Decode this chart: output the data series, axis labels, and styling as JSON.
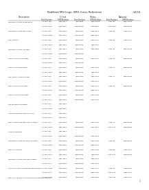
{
  "title": "RadHard MSI Logic SMD Cross Reference",
  "page": "V2/24",
  "bg_color": "#ffffff",
  "rows": [
    [
      "Quadruple 2-Input NAND Gates",
      "F 27xxx 388",
      "5962-8611",
      "IDT100885",
      "5962-8751x",
      "5461 88",
      "5962-8751x"
    ],
    [
      "",
      "F 27xxx 3984",
      "5962-8611",
      "IDT1000088",
      "5962-8827",
      "5461 1984",
      "5962-8751x"
    ],
    [
      "Quadruple 2-Input NOR Gates",
      "F 27xxx 382",
      "5962-8614",
      "IDT100085",
      "5962-4873",
      "5461 82",
      "5962-4742"
    ],
    [
      "",
      "F 27xxx 3942",
      "5962-8614",
      "IDT1000088",
      "5962-8843",
      "",
      ""
    ],
    [
      "Bus Inverters",
      "F 27xxx 384",
      "5962-8618",
      "IDT100085",
      "5962-8717",
      "5461 84",
      "5962-8748"
    ],
    [
      "",
      "F 27xxx 3964",
      "5962-8617",
      "IDT1000088",
      "5962-7717",
      "",
      ""
    ],
    [
      "Quadruple 2-Input OR Gates",
      "F 27xxx 348",
      "5962-8618",
      "IDT100085",
      "5962-4888",
      "5461 38",
      "5962-8751x"
    ],
    [
      "",
      "F 27xxx 3528",
      "5962-8618",
      "IDT1000088",
      "",
      "",
      ""
    ],
    [
      "Triple 4-Input NAND Gates",
      "F 27xxx 318",
      "5962-8618",
      "IDT100085",
      "5962-8717",
      "5461 18",
      "5962-8751x"
    ],
    [
      "",
      "F 27xxx 3194",
      "5962-8611",
      "IDT1000088",
      "",
      "",
      ""
    ],
    [
      "Triple 4-Input NOR Gates",
      "F 27xxx 31 1",
      "5962-8622",
      "IDT100085",
      "5962-4733",
      "5461 11",
      "5962-8751x"
    ],
    [
      "",
      "F 27xxx 3152",
      "5962-8623",
      "IDT1000088",
      "5962-4733",
      "",
      ""
    ],
    [
      "Bus Inverter Schmitt trigger",
      "F 27xxx 318",
      "5962-8625",
      "IDT100085",
      "5962-4733",
      "5461 14",
      "5962-8753x"
    ],
    [
      "",
      "F 27xxx 3164",
      "5962-8627",
      "IDT1000088",
      "5962-4773",
      "",
      ""
    ],
    [
      "Dual 4-Input NAND Gates",
      "F 27xxx 328",
      "5962-8624",
      "IDT100085",
      "5962-4773",
      "5461 28",
      "5962-8751x"
    ],
    [
      "",
      "F 27xxx 3242",
      "5962-8627",
      "IDT1000088",
      "5962-4773",
      "",
      ""
    ],
    [
      "Triple 4-Input NAND Gates",
      "F 27xxx 327",
      "5962-8258",
      "IDT100085",
      "5962-4784",
      "",
      ""
    ],
    [
      "",
      "F 27xxx 3277",
      "5962-8478",
      "IDT1057988",
      "5962-4754",
      "",
      ""
    ],
    [
      "Bus Fanout/wiring Buffers",
      "F 27xxx 324",
      "5962-8518",
      "",
      "",
      "",
      ""
    ],
    [
      "",
      "F 27xxx 3342",
      "5962-8511",
      "",
      "",
      "",
      ""
    ],
    [
      "4-Mbit SRAM/RAM-NV/ROM Series",
      "F 27xxx 374",
      "5962-8517",
      "",
      "",
      "",
      ""
    ],
    [
      "",
      "F 27xxx 3574",
      "5962-8511",
      "",
      "",
      "",
      ""
    ],
    [
      "Dual D-Type Flops with Clear & Preset",
      "F 27xxx 373",
      "5962-8518",
      "IDT100085",
      "5962-4752",
      "5461 73",
      "5962-4823x"
    ],
    [
      "",
      "F 27xxx 3452",
      "5962-8518",
      "IDT100085D",
      "5962-4513",
      "5461 21 5",
      "5962-4823x"
    ],
    [
      "4-Bit comparators",
      "F 27xxx 387",
      "5962-8514",
      "",
      "",
      "",
      ""
    ],
    [
      "",
      "F 27xxx 3487",
      "5962-8517",
      "IDT1000088",
      "5962-4943",
      "",
      ""
    ],
    [
      "Quadruple 2-Input Exclusive OR Gates",
      "F 27xxx 284",
      "5962-8518",
      "IDT100085",
      "5962-4723",
      "5461 84",
      "5962-8813x"
    ],
    [
      "",
      "F 27xxx 2580",
      "5962-8519",
      "IDT1000088",
      "5962-4729",
      "",
      ""
    ],
    [
      "Dual 4K Flip-Flops",
      "F 27xxx 383",
      "5962-8258",
      "IDT100085",
      "5962-4754",
      "5461 88",
      "5962-8373"
    ],
    [
      "",
      "F 27xxx 3824",
      "5962-8268",
      "IDT1000088",
      "5962-4758",
      "5461 31 8",
      "5962-8374x"
    ],
    [
      "Quadruple 2-Input D Decade Triggers",
      "F 27xxx 317",
      "5962-4518",
      "IDT100085",
      "5962-4713",
      "",
      ""
    ],
    [
      "",
      "F 27xxx 21 2",
      "5962-8468",
      "IDT1000088",
      "5962-4718",
      "",
      ""
    ],
    [
      "9-Line to 4-Line Standard Decoders/plexers",
      "F 27xxx 3138",
      "5962-8264",
      "IDT100085",
      "5962-7777",
      "5461 18",
      "5962-8752"
    ],
    [
      "",
      "F 27xxx 37 8",
      "5962-8468",
      "IDT1000088",
      "5962-4780",
      "5461 21 8",
      "5962-8774"
    ],
    [
      "Dual 16-Line to 16-Line Standard Decoders/multiplexers",
      "F 27xxx 3138",
      "5962-8468",
      "IDT100485",
      "5962-4883",
      "5461 128",
      "5962-8742"
    ]
  ]
}
